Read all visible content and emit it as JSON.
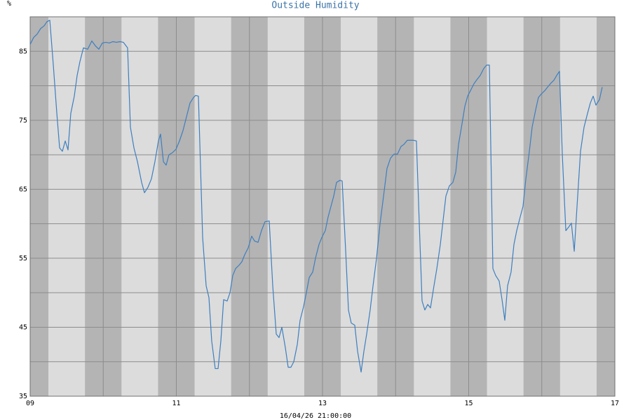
{
  "chart_data": {
    "type": "line",
    "title": "Outside Humidity",
    "y_unit": "%",
    "xlabel": "16/04/26 21:00:00",
    "xlim": [
      9,
      17
    ],
    "ylim": [
      35,
      90
    ],
    "xticks": [
      {
        "value": 9,
        "label": "09"
      },
      {
        "value": 11,
        "label": "11"
      },
      {
        "value": 13,
        "label": "13"
      },
      {
        "value": 15,
        "label": "15"
      },
      {
        "value": 17,
        "label": "17"
      }
    ],
    "xminorticks": [
      10,
      12,
      14,
      16
    ],
    "yticks": [
      35,
      45,
      55,
      65,
      75,
      85
    ],
    "yminorticks": [
      40,
      50,
      60,
      70,
      80,
      90
    ],
    "grid": true,
    "background_color": "#dcdcdc",
    "night_color": "#b4b4b4",
    "night_bands": [
      [
        9,
        9.25
      ],
      [
        9.75,
        10.25
      ],
      [
        10.75,
        11.25
      ],
      [
        11.75,
        12.25
      ],
      [
        12.75,
        13.25
      ],
      [
        13.75,
        14.25
      ],
      [
        14.75,
        15.25
      ],
      [
        15.75,
        16.25
      ],
      [
        16.75,
        17
      ]
    ],
    "x": [
      9.0,
      9.048,
      9.096,
      9.144,
      9.192,
      9.23,
      9.269,
      9.317,
      9.365,
      9.403,
      9.441,
      9.48,
      9.518,
      9.556,
      9.604,
      9.643,
      9.681,
      9.729,
      9.787,
      9.844,
      9.892,
      9.94,
      9.988,
      10.036,
      10.084,
      10.132,
      10.18,
      10.228,
      10.276,
      10.333,
      10.372,
      10.42,
      10.468,
      10.525,
      10.564,
      10.612,
      10.659,
      10.707,
      10.755,
      10.784,
      10.823,
      10.861,
      10.899,
      10.947,
      10.995,
      11.043,
      11.091,
      11.139,
      11.187,
      11.235,
      11.264,
      11.302,
      11.36,
      11.408,
      11.446,
      11.484,
      11.532,
      11.571,
      11.609,
      11.647,
      11.695,
      11.734,
      11.772,
      11.811,
      11.859,
      11.897,
      11.935,
      11.983,
      12.031,
      12.07,
      12.118,
      12.165,
      12.213,
      12.271,
      12.319,
      12.367,
      12.405,
      12.444,
      12.492,
      12.53,
      12.568,
      12.607,
      12.655,
      12.693,
      12.741,
      12.779,
      12.818,
      12.866,
      12.904,
      12.952,
      12.99,
      13.038,
      13.077,
      13.115,
      13.153,
      13.192,
      13.24,
      13.269,
      13.317,
      13.355,
      13.393,
      13.441,
      13.48,
      13.528,
      13.566,
      13.604,
      13.652,
      13.691,
      13.739,
      13.787,
      13.835,
      13.882,
      13.93,
      13.978,
      14.026,
      14.074,
      14.113,
      14.161,
      14.209,
      14.247,
      14.285,
      14.324,
      14.362,
      14.4,
      14.439,
      14.477,
      14.525,
      14.564,
      14.612,
      14.65,
      14.688,
      14.736,
      14.784,
      14.823,
      14.861,
      14.909,
      14.947,
      14.986,
      15.034,
      15.072,
      15.12,
      15.158,
      15.206,
      15.245,
      15.283,
      15.331,
      15.369,
      15.417,
      15.456,
      15.494,
      15.532,
      15.58,
      15.619,
      15.657,
      15.705,
      15.743,
      15.782,
      15.83,
      15.868,
      15.916,
      15.954,
      15.993,
      16.041,
      16.079,
      16.118,
      16.165,
      16.204,
      16.242,
      16.281,
      16.329,
      16.367,
      16.405,
      16.444,
      16.482,
      16.53,
      16.578,
      16.626,
      16.664,
      16.703,
      16.741,
      16.789,
      16.827
    ],
    "series": [
      {
        "name": "Outside Humidity",
        "color": "#3d7fbf",
        "values": [
          86,
          87,
          87.5,
          88.3,
          88.7,
          89.3,
          89.5,
          83,
          76,
          71,
          70.5,
          72,
          70.7,
          76,
          78.5,
          81.5,
          83.5,
          85.5,
          85.3,
          86.5,
          85.8,
          85.3,
          86.2,
          86.3,
          86.2,
          86.4,
          86.3,
          86.4,
          86.3,
          85.5,
          74,
          71,
          69,
          66,
          64.5,
          65.3,
          66.5,
          69,
          72,
          73,
          69,
          68.5,
          70,
          70.3,
          70.8,
          72,
          73.5,
          75.5,
          77.5,
          78.3,
          78.6,
          78.5,
          58,
          51,
          49.3,
          43,
          39,
          39,
          43,
          49,
          48.8,
          50,
          52.5,
          53.5,
          54,
          54.5,
          55.5,
          56.5,
          58.2,
          57.5,
          57.3,
          59,
          60.3,
          60.4,
          51,
          44,
          43.5,
          45,
          42,
          39.2,
          39.2,
          40,
          42.5,
          46,
          48,
          50,
          52.2,
          53,
          55,
          57,
          58,
          59,
          61,
          62.5,
          64,
          66,
          66.3,
          66.2,
          56,
          47.5,
          45.6,
          45.3,
          41.5,
          38.5,
          41.5,
          44,
          47.5,
          51,
          55,
          60,
          64,
          68,
          69.5,
          70.1,
          70.1,
          71.2,
          71.5,
          72.1,
          72.1,
          72.1,
          72,
          60,
          48.8,
          47.5,
          48.3,
          47.8,
          51,
          53.5,
          57,
          60.5,
          64,
          65.5,
          66,
          67.5,
          71.5,
          74.5,
          77,
          78.5,
          79.5,
          80.3,
          81,
          81.5,
          82.5,
          83,
          83,
          53.5,
          52.5,
          51.7,
          49,
          46,
          51,
          53,
          57,
          59,
          61,
          62.5,
          66.5,
          70.5,
          74,
          76.5,
          78.3,
          78.8,
          79.3,
          79.8,
          80.3,
          80.8,
          81.5,
          82.1,
          70,
          59,
          59.5,
          60.1,
          56,
          62.5,
          70.5,
          74,
          76,
          77.5,
          78.5,
          77.2,
          78,
          79.8
        ]
      }
    ]
  }
}
